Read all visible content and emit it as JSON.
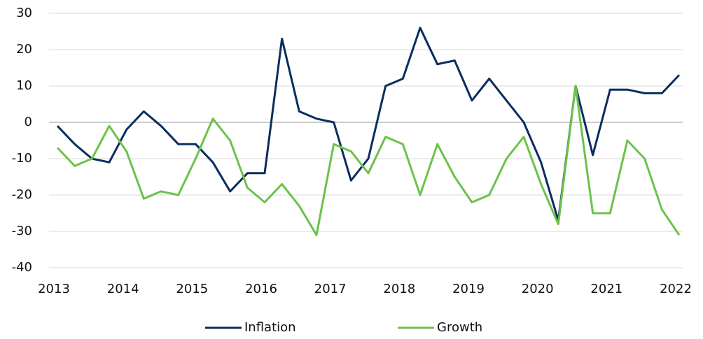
{
  "chart_data": {
    "type": "line",
    "categories": [
      "2013",
      null,
      null,
      null,
      "2014",
      null,
      null,
      null,
      "2015",
      null,
      null,
      null,
      "2016",
      null,
      null,
      null,
      "2017",
      null,
      null,
      null,
      "2018",
      null,
      null,
      null,
      "2019",
      null,
      null,
      null,
      "2020",
      null,
      null,
      null,
      "2021",
      null,
      null,
      null,
      "2022"
    ],
    "series": [
      {
        "name": "Inflation",
        "color": "#0b2d5e",
        "values": [
          -1,
          -6,
          -10,
          -11,
          -2,
          3,
          -1,
          -6,
          -6,
          -11,
          -19,
          -14,
          -14,
          23,
          3,
          1,
          0,
          -16,
          -10,
          10,
          12,
          26,
          16,
          17,
          6,
          12,
          6,
          0,
          -11,
          -27,
          10,
          -9,
          9,
          9,
          8,
          8,
          13
        ]
      },
      {
        "name": "Growth",
        "color": "#6cc24a",
        "values": [
          -7,
          -12,
          -10,
          -1,
          -8,
          -21,
          -19,
          -20,
          -10,
          1,
          -5,
          -18,
          -22,
          -17,
          -23,
          -31,
          -6,
          -8,
          -14,
          -4,
          -6,
          -20,
          -6,
          -15,
          -22,
          -20,
          -10,
          -4,
          -17,
          -28,
          10,
          -25,
          -25,
          -5,
          -10,
          -24,
          -31
        ]
      }
    ],
    "ylim": [
      -40,
      30
    ],
    "yticks": [
      -40,
      -30,
      -20,
      -10,
      0,
      10,
      20,
      30
    ],
    "grid": true,
    "legend": "bottom"
  }
}
